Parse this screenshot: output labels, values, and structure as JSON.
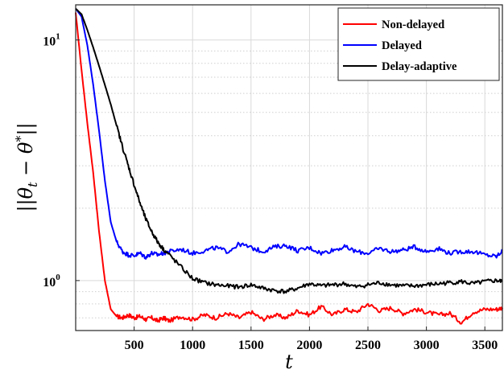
{
  "chart_data": {
    "type": "line",
    "title": "",
    "xlabel": "t",
    "ylabel": "||θ_t − θ*||",
    "ylabel_parts": {
      "open": "||",
      "theta": "θ",
      "sub": "t",
      "minus": " − ",
      "theta2": "θ",
      "star": "*",
      "close": "||"
    },
    "xlim": [
      0,
      3650
    ],
    "ylim": [
      0.62,
      14
    ],
    "yscale": "log",
    "grid": true,
    "legend_position": "top-right",
    "x_ticks": [
      {
        "value": 500,
        "label": "500"
      },
      {
        "value": 1000,
        "label": "1000"
      },
      {
        "value": 1500,
        "label": "1500"
      },
      {
        "value": 2000,
        "label": "2000"
      },
      {
        "value": 2500,
        "label": "2500"
      },
      {
        "value": 3000,
        "label": "3000"
      },
      {
        "value": 3500,
        "label": "3500"
      }
    ],
    "y_ticks": [
      {
        "value": 1,
        "base": "10",
        "exp": "0"
      },
      {
        "value": 10,
        "base": "10",
        "exp": "1"
      }
    ],
    "x": [
      0,
      50,
      100,
      150,
      200,
      250,
      300,
      350,
      400,
      450,
      500,
      550,
      600,
      650,
      700,
      750,
      800,
      900,
      1000,
      1100,
      1200,
      1300,
      1400,
      1500,
      1600,
      1700,
      1800,
      1900,
      2000,
      2100,
      2200,
      2300,
      2400,
      2500,
      2600,
      2700,
      2800,
      2900,
      3000,
      3100,
      3200,
      3300,
      3400,
      3500,
      3600,
      3650
    ],
    "series": [
      {
        "name": "Non-delayed",
        "color": "#ff0000",
        "values": [
          13,
          7.5,
          4.5,
          2.8,
          1.6,
          1.0,
          0.76,
          0.71,
          0.7,
          0.72,
          0.7,
          0.71,
          0.69,
          0.7,
          0.68,
          0.7,
          0.68,
          0.71,
          0.69,
          0.72,
          0.7,
          0.73,
          0.7,
          0.74,
          0.69,
          0.72,
          0.7,
          0.75,
          0.72,
          0.78,
          0.72,
          0.76,
          0.74,
          0.8,
          0.75,
          0.77,
          0.73,
          0.76,
          0.74,
          0.72,
          0.73,
          0.67,
          0.74,
          0.76,
          0.76,
          0.77
        ]
      },
      {
        "name": "Delayed",
        "color": "#0000ff",
        "values": [
          13.5,
          12.5,
          9.5,
          6.5,
          4.2,
          2.6,
          1.75,
          1.45,
          1.32,
          1.28,
          1.27,
          1.3,
          1.25,
          1.3,
          1.28,
          1.3,
          1.32,
          1.35,
          1.3,
          1.33,
          1.37,
          1.32,
          1.42,
          1.37,
          1.32,
          1.38,
          1.4,
          1.33,
          1.37,
          1.3,
          1.34,
          1.38,
          1.32,
          1.3,
          1.36,
          1.32,
          1.34,
          1.38,
          1.32,
          1.36,
          1.3,
          1.32,
          1.32,
          1.28,
          1.26,
          1.33
        ]
      },
      {
        "name": "Delay-adaptive",
        "color": "#000000",
        "values": [
          13.5,
          12.8,
          11.0,
          9.3,
          7.8,
          6.5,
          5.4,
          4.4,
          3.6,
          3.0,
          2.5,
          2.1,
          1.8,
          1.6,
          1.45,
          1.35,
          1.28,
          1.14,
          1.02,
          0.98,
          0.96,
          0.95,
          0.94,
          0.96,
          0.93,
          0.91,
          0.9,
          0.93,
          0.97,
          0.95,
          0.96,
          0.97,
          0.94,
          0.96,
          0.98,
          0.96,
          0.95,
          0.95,
          0.96,
          0.97,
          0.98,
          0.99,
          0.97,
          0.99,
          1.0,
          0.99
        ]
      }
    ]
  }
}
